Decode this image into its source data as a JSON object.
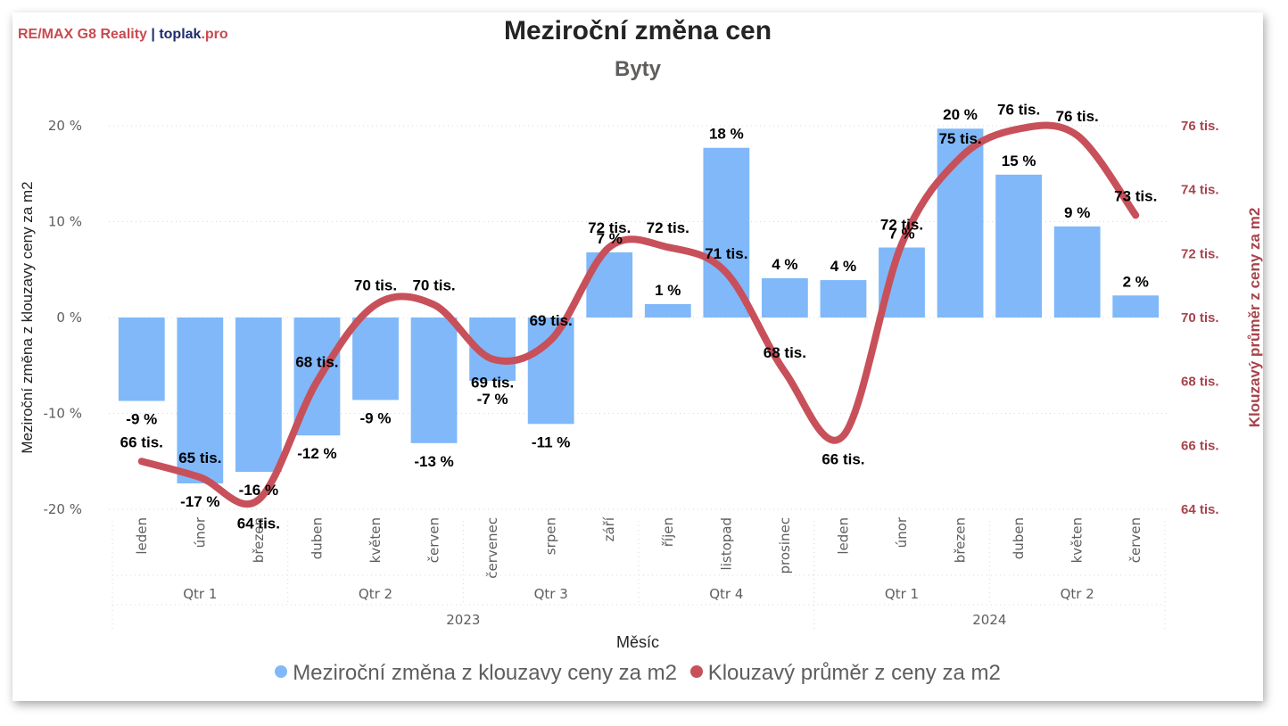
{
  "brand": {
    "remax": "RE/MAX G8 Reality",
    "separator": "|",
    "toplak": "toplak",
    "toplak_ext": ".pro"
  },
  "header": {
    "title": "Meziroční změna cen",
    "subtitle": "Byty"
  },
  "legend": {
    "items": [
      {
        "label": "Meziroční změna z klouzavy ceny za m2",
        "color": "#80b8f9"
      },
      {
        "label": "Klouzavý průměr z ceny za m2",
        "color": "#c8505a"
      }
    ]
  },
  "chart_data": {
    "type": "bar",
    "title": "Meziroční změna cen",
    "subtitle": "Byty",
    "xlabel": "Měsíc",
    "ylabel": "Meziroční změna z klouzavy ceny za m2",
    "y2label": "Klouzavý průměr z ceny za m2",
    "categories": [
      "leden",
      "únor",
      "březen",
      "duben",
      "květen",
      "červen",
      "červenec",
      "srpen",
      "září",
      "říjen",
      "listopad",
      "prosinec",
      "leden",
      "únor",
      "březen",
      "duben",
      "květen",
      "červen"
    ],
    "quarters": [
      {
        "label": "Qtr 1",
        "months": 3
      },
      {
        "label": "Qtr 2",
        "months": 3
      },
      {
        "label": "Qtr 3",
        "months": 3
      },
      {
        "label": "Qtr 4",
        "months": 3
      },
      {
        "label": "Qtr 1",
        "months": 3
      },
      {
        "label": "Qtr 2",
        "months": 3
      }
    ],
    "years": [
      {
        "label": "2023",
        "months": 12
      },
      {
        "label": "2024",
        "months": 6
      }
    ],
    "series": [
      {
        "name": "Meziroční změna z klouzavy ceny za m2",
        "type": "bar",
        "axis": "left",
        "color": "#80b8f9",
        "values": [
          -8.7,
          -17.3,
          -16.1,
          -12.3,
          -8.6,
          -13.1,
          -6.6,
          -11.1,
          6.8,
          1.4,
          17.7,
          4.1,
          3.9,
          7.3,
          19.7,
          14.9,
          9.5,
          2.3
        ],
        "labels": [
          "-9 %",
          "-17 %",
          "-16 %",
          "-12 %",
          "-9 %",
          "-13 %",
          "-7 %",
          "-11 %",
          "7 %",
          "1 %",
          "18 %",
          "4 %",
          "4 %",
          "7 %",
          "20 %",
          "15 %",
          "9 %",
          "2 %"
        ]
      },
      {
        "name": "Klouzavý průměr z ceny za m2",
        "type": "line",
        "axis": "right",
        "color": "#c8505a",
        "values": [
          65.5,
          65.0,
          64.3,
          68.0,
          70.4,
          70.4,
          68.7,
          69.3,
          72.2,
          72.2,
          71.4,
          68.3,
          66.3,
          72.3,
          75.0,
          75.9,
          75.7,
          73.2
        ],
        "labels": [
          "66 tis.",
          "65 tis.",
          "64 tis.",
          "68 tis.",
          "70 tis.",
          "70 tis.",
          "69 tis.",
          "69 tis.",
          "72 tis.",
          "72 tis.",
          "71 tis.",
          "68 tis.",
          "66 tis.",
          "72 tis.",
          "75 tis.",
          "76 tis.",
          "76 tis.",
          "73 tis."
        ]
      }
    ],
    "ylim": [
      -20,
      20
    ],
    "yticks": [
      -20,
      -10,
      0,
      10,
      20
    ],
    "ytick_labels": [
      "-20 %",
      "-10 %",
      "0 %",
      "10 %",
      "20 %"
    ],
    "y2lim": [
      64,
      76
    ],
    "y2ticks": [
      64,
      66,
      68,
      70,
      72,
      74,
      76
    ],
    "y2tick_labels": [
      "64 tis.",
      "66 tis.",
      "68 tis.",
      "70 tis.",
      "72 tis.",
      "74 tis.",
      "76 tis."
    ],
    "grid": true,
    "legend_position": "bottom"
  }
}
